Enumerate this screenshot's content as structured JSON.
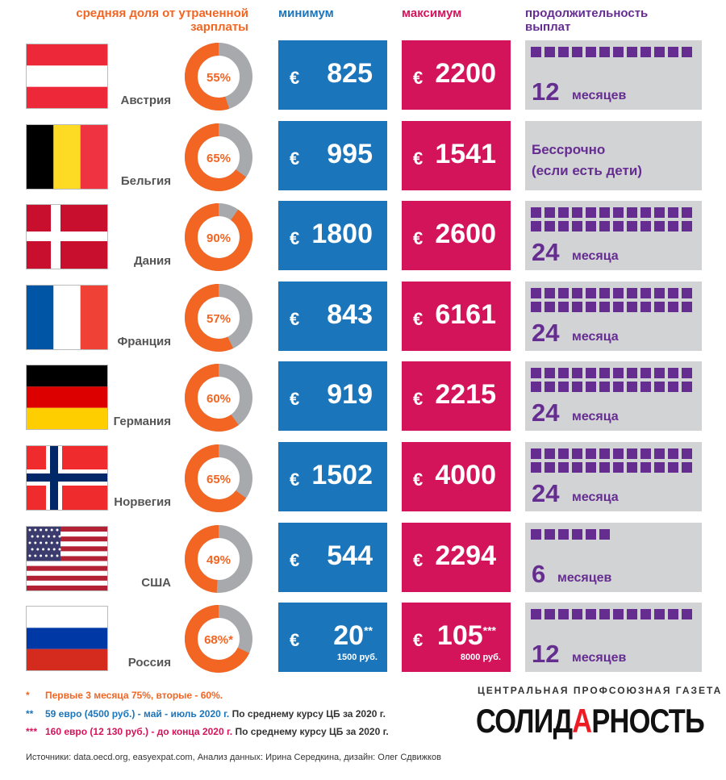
{
  "headers": {
    "share_line1": "средняя доля от утраченной",
    "share_line2": "зарплаты",
    "min": "минимум",
    "max": "максимум",
    "duration_line1": "продолжительность",
    "duration_line2": "выплат"
  },
  "colors": {
    "share_orange": "#f26522",
    "share_gray": "#a7a9ac",
    "min_blue": "#1b75bb",
    "max_magenta": "#d4145a",
    "duration_purple": "#662d91",
    "duration_bg": "#d1d3d4"
  },
  "chart_data": {
    "type": "table",
    "columns": [
      "средняя доля от утраченной зарплаты",
      "минимум",
      "максимум",
      "продолжительность выплат"
    ],
    "rows": [
      {
        "country": "Австрия",
        "flag": "austria-flag",
        "share": 55,
        "share_label": "55%",
        "currency": "€",
        "min": "825",
        "max": "2200",
        "duration_months": 12,
        "duration_num": "12",
        "duration_unit": "месяцев"
      },
      {
        "country": "Бельгия",
        "flag": "belgium-flag",
        "share": 65,
        "share_label": "65%",
        "currency": "€",
        "min": "995",
        "max": "1541",
        "duration_months": null,
        "duration_text_line1": "Бессрочно",
        "duration_text_line2": "(если есть дети)"
      },
      {
        "country": "Дания",
        "flag": "denmark-flag",
        "share": 90,
        "share_label": "90%",
        "currency": "€",
        "min": "1800",
        "max": "2600",
        "duration_months": 24,
        "duration_num": "24",
        "duration_unit": "месяца"
      },
      {
        "country": "Франция",
        "flag": "france-flag",
        "share": 57,
        "share_label": "57%",
        "currency": "€",
        "min": "843",
        "max": "6161",
        "duration_months": 24,
        "duration_num": "24",
        "duration_unit": "месяца"
      },
      {
        "country": "Германия",
        "flag": "germany-flag",
        "share": 60,
        "share_label": "60%",
        "currency": "€",
        "min": "919",
        "max": "2215",
        "duration_months": 24,
        "duration_num": "24",
        "duration_unit": "месяца"
      },
      {
        "country": "Норвегия",
        "flag": "norway-flag",
        "share": 65,
        "share_label": "65%",
        "currency": "€",
        "min": "1502",
        "max": "4000",
        "duration_months": 24,
        "duration_num": "24",
        "duration_unit": "месяца"
      },
      {
        "country": "США",
        "flag": "usa-flag",
        "share": 49,
        "share_label": "49%",
        "currency": "€",
        "min": "544",
        "max": "2294",
        "duration_months": 6,
        "duration_num": "6",
        "duration_unit": "месяцев"
      },
      {
        "country": "Россия",
        "flag": "russia-flag",
        "share": 68,
        "share_label": "68%",
        "share_mark": "*",
        "currency": "€",
        "min": "20",
        "min_mark": "**",
        "min_rub": "1500 руб.",
        "max": "105",
        "max_mark": "***",
        "max_rub": "8000 руб.",
        "duration_months": 12,
        "duration_num": "12",
        "duration_unit": "месяцев"
      }
    ]
  },
  "footnotes": [
    {
      "marker": "*",
      "text": "Первые 3 месяца 75%, вторые - 60%.",
      "extra": ""
    },
    {
      "marker": "**",
      "text": "59 евро (4500 руб.) - май - июль 2020 г.",
      "extra": "По среднему курсу ЦБ за 2020 г."
    },
    {
      "marker": "***",
      "text": "160 евро (12 130 руб.) - до конца 2020 г.",
      "extra": "По среднему курсу ЦБ за 2020 г."
    }
  ],
  "sources": "Источники: data.oecd.org, easyexpat.com, Анализ данных: Ирина Середкина, дизайн: Олег Сдвижков",
  "brand": {
    "tagline": "ЦЕНТРАЛЬНАЯ ПРОФСОЮЗНАЯ ГАЗЕТА",
    "logo_part1": "СОЛИД",
    "logo_part2": "А",
    "logo_part3": "РНОСТЬ"
  }
}
